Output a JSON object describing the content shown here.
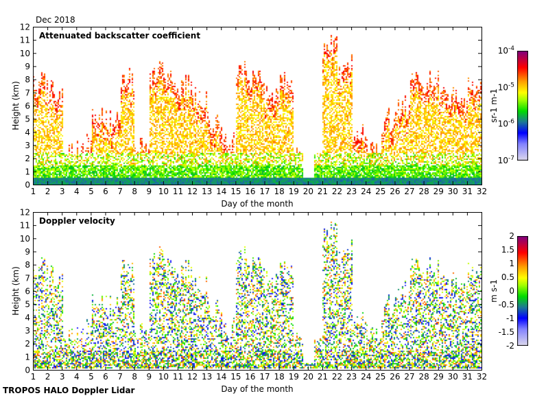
{
  "date_label": "Dec 2018",
  "footer": "TROPOS HALO Doppler Lidar",
  "chart_data": [
    {
      "type": "heatmap",
      "title": "Attenuated backscatter coefficient",
      "xlabel": "Day of the month",
      "ylabel": "Height (km)",
      "xlim": [
        1,
        32
      ],
      "ylim": [
        0,
        12
      ],
      "xticks": [
        1,
        2,
        3,
        4,
        5,
        6,
        7,
        8,
        9,
        10,
        11,
        12,
        13,
        14,
        15,
        16,
        17,
        18,
        19,
        20,
        21,
        22,
        23,
        24,
        25,
        26,
        27,
        28,
        29,
        30,
        31,
        32
      ],
      "yticks": [
        0,
        1,
        2,
        3,
        4,
        5,
        6,
        7,
        8,
        9,
        10,
        11,
        12
      ],
      "colorbar": {
        "label": "sr-1 m-1",
        "scale": "log",
        "range": [
          1e-07,
          0.0001
        ],
        "tick_labels": [
          "10-7",
          "10-6",
          "10-5",
          "10-4"
        ]
      },
      "approx_cloud_top_km_by_day": [
        8,
        7,
        2.5,
        3,
        5.5,
        5,
        8,
        3,
        8.5,
        8,
        7.5,
        6.5,
        5,
        3,
        8.5,
        8.5,
        7,
        8,
        2,
        0,
        10.5,
        9,
        4,
        3,
        5,
        6,
        8.5,
        8,
        7,
        6.5,
        7.5
      ]
    },
    {
      "type": "heatmap",
      "title": "Doppler velocity",
      "xlabel": "Day of the month",
      "ylabel": "Height (km)",
      "xlim": [
        1,
        32
      ],
      "ylim": [
        0,
        12
      ],
      "xticks": [
        1,
        2,
        3,
        4,
        5,
        6,
        7,
        8,
        9,
        10,
        11,
        12,
        13,
        14,
        15,
        16,
        17,
        18,
        19,
        20,
        21,
        22,
        23,
        24,
        25,
        26,
        27,
        28,
        29,
        30,
        31,
        32
      ],
      "yticks": [
        0,
        1,
        2,
        3,
        4,
        5,
        6,
        7,
        8,
        9,
        10,
        11,
        12
      ],
      "colorbar": {
        "label": "m s-1",
        "scale": "linear",
        "range": [
          -2,
          2
        ],
        "tick_labels": [
          "-2",
          "-1.5",
          "-1",
          "-0.5",
          "0",
          "0.5",
          "1",
          "1.5",
          "2"
        ]
      }
    }
  ]
}
